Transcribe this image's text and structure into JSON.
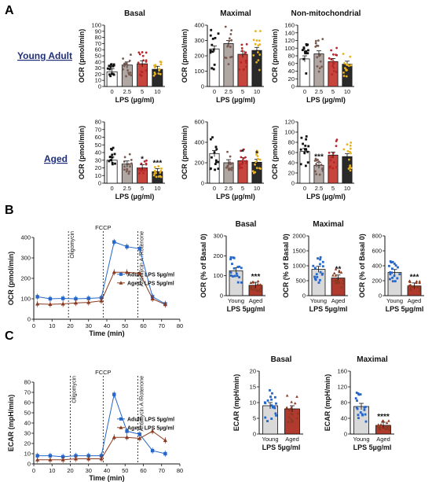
{
  "panel_labels": [
    "A",
    "B",
    "C"
  ],
  "row_labels": {
    "young": "Young Adult",
    "aged": "Aged"
  },
  "colors": {
    "ctrl": "#ffffff",
    "lps25": "#b0a7a3",
    "lps5": "#c7453c",
    "lps10": "#2a2a2a",
    "ctrl_pts": "#111111",
    "lps25_pts": "#7a5a50",
    "lps5_pts": "#b8262a",
    "lps10_pts": "#e7b21f",
    "adult": "#2466c9",
    "aged": "#8a3a20",
    "young_bar": "#d9d9d9",
    "aged_bar": "#b03a2e"
  },
  "chart_data": [
    {
      "id": "A-young-basal",
      "type": "bar",
      "title": "Basal",
      "ylabel": "OCR (pmol/min)",
      "xlabel": "LPS (µg/ml)",
      "categories": [
        "0",
        "2.5",
        "5",
        "10"
      ],
      "values": [
        24,
        35,
        37,
        28
      ],
      "ylim": [
        0,
        100
      ],
      "yticks": [
        0,
        10,
        20,
        30,
        40,
        50,
        60,
        70,
        80,
        90,
        100
      ]
    },
    {
      "id": "A-young-maximal",
      "type": "bar",
      "title": "Maximal",
      "ylabel": "OCR (pmol/min)",
      "xlabel": "LPS (µg/ml)",
      "categories": [
        "0",
        "2.5",
        "5",
        "10"
      ],
      "values": [
        245,
        280,
        210,
        235
      ],
      "ylim": [
        0,
        400
      ],
      "yticks": [
        0,
        100,
        200,
        300,
        400
      ]
    },
    {
      "id": "A-young-nonmito",
      "type": "bar",
      "title": "Non-mitochondrial",
      "ylabel": "OCR (pmol/min)",
      "xlabel": "LPS (µg/ml)",
      "categories": [
        "0",
        "2.5",
        "5",
        "10"
      ],
      "values": [
        72,
        85,
        65,
        58
      ],
      "ylim": [
        0,
        160
      ],
      "yticks": [
        0,
        20,
        40,
        60,
        80,
        100,
        120,
        140,
        160
      ]
    },
    {
      "id": "A-aged-basal",
      "type": "bar",
      "title": "",
      "ylabel": "OCR (pmol/min)",
      "xlabel": "LPS (µg/ml)",
      "categories": [
        "0",
        "2.5",
        "5",
        "10"
      ],
      "values": [
        30,
        25,
        20,
        15
      ],
      "ylim": [
        0,
        80
      ],
      "yticks": [
        0,
        10,
        20,
        30,
        40,
        50,
        60,
        70,
        80
      ],
      "annotations": [
        {
          "category": "5",
          "text": "*"
        },
        {
          "category": "10",
          "text": "***"
        }
      ]
    },
    {
      "id": "A-aged-maximal",
      "type": "bar",
      "title": "",
      "ylabel": "OCR (pmol/min)",
      "xlabel": "LPS (µg/ml)",
      "categories": [
        "0",
        "2.5",
        "5",
        "10"
      ],
      "values": [
        290,
        200,
        220,
        205
      ],
      "ylim": [
        0,
        600
      ],
      "yticks": [
        0,
        200,
        400,
        600
      ],
      "annotations": [
        {
          "category": "5",
          "text": "*"
        },
        {
          "category": "10",
          "text": "*"
        }
      ]
    },
    {
      "id": "A-aged-nonmito",
      "type": "bar",
      "title": "",
      "ylabel": "OCR (pmol/min)",
      "xlabel": "LPS (µg/ml)",
      "categories": [
        "0",
        "2.5",
        "5",
        "10"
      ],
      "values": [
        62,
        35,
        55,
        52
      ],
      "ylim": [
        0,
        120
      ],
      "yticks": [
        0,
        20,
        40,
        60,
        80,
        100,
        120
      ],
      "annotations": [
        {
          "category": "2.5",
          "text": "***"
        }
      ]
    },
    {
      "id": "B-line",
      "type": "line",
      "ylabel": "OCR (pmol/min)",
      "xlabel": "Time (min)",
      "xlim": [
        0,
        80
      ],
      "ylim": [
        0,
        400
      ],
      "xticks": [
        0,
        10,
        20,
        30,
        40,
        50,
        60,
        70,
        80
      ],
      "yticks": [
        0,
        100,
        200,
        300,
        400
      ],
      "x": [
        2,
        9,
        16,
        23,
        30,
        37,
        44,
        51,
        58,
        65,
        72
      ],
      "series": [
        {
          "name": "Adult: LPS 5µg/ml",
          "values": [
            110,
            100,
            102,
            100,
            102,
            105,
            378,
            355,
            345,
            110,
            75
          ]
        },
        {
          "name": "Aged: LPS 5µg/ml",
          "values": [
            75,
            73,
            75,
            80,
            82,
            90,
            230,
            230,
            225,
            100,
            72
          ]
        }
      ],
      "vlines": [
        {
          "x": 19,
          "label": "Oligomycin"
        },
        {
          "x": 38,
          "label": "FCCP"
        },
        {
          "x": 57,
          "label": "Antimycin A /Rotenone"
        }
      ]
    },
    {
      "id": "B-basal",
      "type": "bar",
      "title": "Basal",
      "ylabel": "OCR (% of Basal 0)",
      "xlabel": "LPS 5µg/ml",
      "categories": [
        "Young",
        "Aged"
      ],
      "values": [
        125,
        52
      ],
      "ylim": [
        0,
        300
      ],
      "yticks": [
        0,
        100,
        200,
        300
      ],
      "annotations": [
        {
          "category": "Aged",
          "text": "***"
        }
      ]
    },
    {
      "id": "B-maximal",
      "type": "bar",
      "title": "Maximal",
      "ylabel": "OCR (% of Basal 0)",
      "xlabel": "LPS 5µg/ml",
      "categories": [
        "Young",
        "Aged"
      ],
      "values": [
        880,
        590
      ],
      "ylim": [
        0,
        2000
      ],
      "yticks": [
        0,
        500,
        1000,
        1500,
        2000
      ],
      "annotations": [
        {
          "category": "Aged",
          "text": "**"
        }
      ]
    },
    {
      "id": "B-third",
      "type": "bar",
      "title": "",
      "ylabel": "OCR (% of Basal 0)",
      "xlabel": "LPS 5µg/ml",
      "categories": [
        "Young",
        "Aged"
      ],
      "values": [
        310,
        130
      ],
      "ylim": [
        0,
        800
      ],
      "yticks": [
        0,
        200,
        400,
        600,
        800
      ],
      "annotations": [
        {
          "category": "Aged",
          "text": "***"
        }
      ]
    },
    {
      "id": "C-line",
      "type": "line",
      "ylabel": "ECAR (mpH/min)",
      "xlabel": "Time (min)",
      "xlim": [
        0,
        80
      ],
      "ylim": [
        0,
        80
      ],
      "xticks": [
        0,
        10,
        20,
        30,
        40,
        50,
        60,
        70,
        80
      ],
      "yticks": [
        0,
        10,
        20,
        30,
        40,
        50,
        60,
        70,
        80
      ],
      "x": [
        2,
        9,
        16,
        23,
        30,
        37,
        44,
        51,
        58,
        65,
        72
      ],
      "series": [
        {
          "name": "Adult: LPS 5µg/ml",
          "values": [
            8,
            8,
            7,
            8,
            8,
            8,
            68,
            32,
            29,
            13,
            10
          ]
        },
        {
          "name": "Aged: LPS 5µg/ml",
          "values": [
            4,
            4,
            4,
            5,
            5,
            5,
            26,
            26,
            25,
            32,
            23
          ]
        }
      ],
      "vlines": [
        {
          "x": 20,
          "label": "Oligomycin"
        },
        {
          "x": 38,
          "label": "FCCP"
        },
        {
          "x": 57,
          "label": "Antimycin A /Rotenone"
        }
      ]
    },
    {
      "id": "C-basal",
      "type": "bar",
      "title": "Basal",
      "ylabel": "ECAR (mpH/min)",
      "xlabel": "LPS 5µg/ml",
      "categories": [
        "Young",
        "Aged"
      ],
      "values": [
        9,
        8
      ],
      "ylim": [
        0,
        20
      ],
      "yticks": [
        0,
        5,
        10,
        15,
        20
      ]
    },
    {
      "id": "C-maximal",
      "type": "bar",
      "title": "Maximal",
      "ylabel": "ECAR (mpH/min)",
      "xlabel": "LPS 5µg/ml",
      "categories": [
        "Young",
        "Aged"
      ],
      "values": [
        70,
        22
      ],
      "ylim": [
        0,
        160
      ],
      "yticks": [
        0,
        40,
        80,
        120,
        160
      ],
      "annotations": [
        {
          "category": "Aged",
          "text": "****"
        }
      ]
    }
  ]
}
